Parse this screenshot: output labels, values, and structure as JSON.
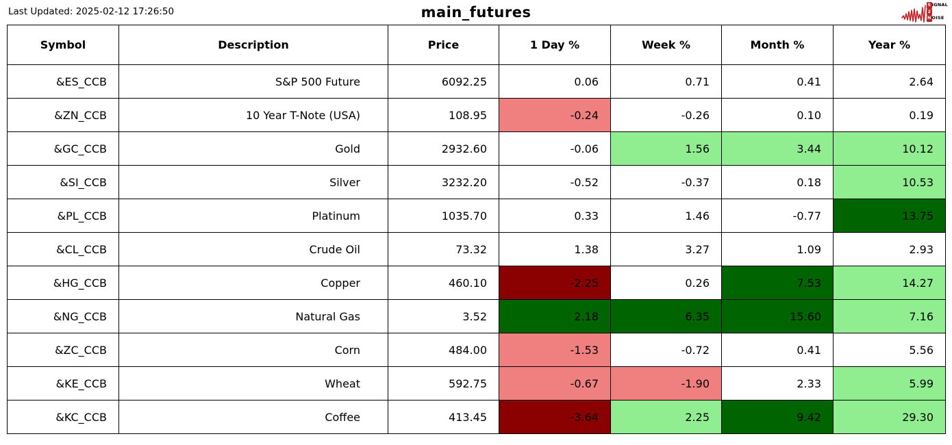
{
  "meta": {
    "last_updated": "Last Updated: 2025-02-12 17:26:50",
    "title": "main_futures"
  },
  "logo": {
    "signal_first": "S",
    "signal_rest": "IGNAL",
    "middle": "2",
    "noise_first": "N",
    "noise_rest": "OISE",
    "accent": "#bf2228"
  },
  "palette": {
    "white": "#ffffff",
    "light_red": "#f08080",
    "dark_red": "#8b0000",
    "light_green": "#90ee90",
    "dark_green": "#006400"
  },
  "chart_data": {
    "type": "table",
    "title": "main_futures",
    "last_updated": "2025-02-12 17:26:50",
    "columns": [
      "Symbol",
      "Description",
      "Price",
      "1 Day %",
      "Week %",
      "Month %",
      "Year %"
    ],
    "rows": [
      [
        "&ES_CCB",
        "S&P 500 Future",
        "6092.25",
        "0.06",
        "0.71",
        "0.41",
        "2.64"
      ],
      [
        "&ZN_CCB",
        "10 Year T-Note (USA)",
        "108.95",
        "-0.24",
        "-0.26",
        "0.10",
        "0.19"
      ],
      [
        "&GC_CCB",
        "Gold",
        "2932.60",
        "-0.06",
        "1.56",
        "3.44",
        "10.12"
      ],
      [
        "&SI_CCB",
        "Silver",
        "3232.20",
        "-0.52",
        "-0.37",
        "0.18",
        "10.53"
      ],
      [
        "&PL_CCB",
        "Platinum",
        "1035.70",
        "0.33",
        "1.46",
        "-0.77",
        "13.75"
      ],
      [
        "&CL_CCB",
        "Crude Oil",
        "73.32",
        "1.38",
        "3.27",
        "1.09",
        "2.93"
      ],
      [
        "&HG_CCB",
        "Copper",
        "460.10",
        "-2.25",
        "0.26",
        "7.53",
        "14.27"
      ],
      [
        "&NG_CCB",
        "Natural Gas",
        "3.52",
        "2.18",
        "6.35",
        "15.60",
        "7.16"
      ],
      [
        "&ZC_CCB",
        "Corn",
        "484.00",
        "-1.53",
        "-0.72",
        "0.41",
        "5.56"
      ],
      [
        "&KE_CCB",
        "Wheat",
        "592.75",
        "-0.67",
        "-1.90",
        "2.33",
        "5.99"
      ],
      [
        "&KC_CCB",
        "Coffee",
        "413.45",
        "-3.64",
        "2.25",
        "9.42",
        "29.30"
      ]
    ],
    "cell_colors": [
      [
        "white",
        "white",
        "white",
        "white",
        "white",
        "white",
        "white"
      ],
      [
        "white",
        "white",
        "white",
        "light_red",
        "white",
        "white",
        "white"
      ],
      [
        "white",
        "white",
        "white",
        "white",
        "light_green",
        "light_green",
        "light_green"
      ],
      [
        "white",
        "white",
        "white",
        "white",
        "white",
        "white",
        "light_green"
      ],
      [
        "white",
        "white",
        "white",
        "white",
        "white",
        "white",
        "dark_green"
      ],
      [
        "white",
        "white",
        "white",
        "white",
        "white",
        "white",
        "white"
      ],
      [
        "white",
        "white",
        "white",
        "dark_red",
        "white",
        "dark_green",
        "light_green"
      ],
      [
        "white",
        "white",
        "white",
        "dark_green",
        "dark_green",
        "dark_green",
        "light_green"
      ],
      [
        "white",
        "white",
        "white",
        "light_red",
        "white",
        "white",
        "white"
      ],
      [
        "white",
        "white",
        "white",
        "light_red",
        "light_red",
        "white",
        "light_green"
      ],
      [
        "white",
        "white",
        "white",
        "dark_red",
        "light_green",
        "dark_green",
        "light_green"
      ]
    ]
  }
}
